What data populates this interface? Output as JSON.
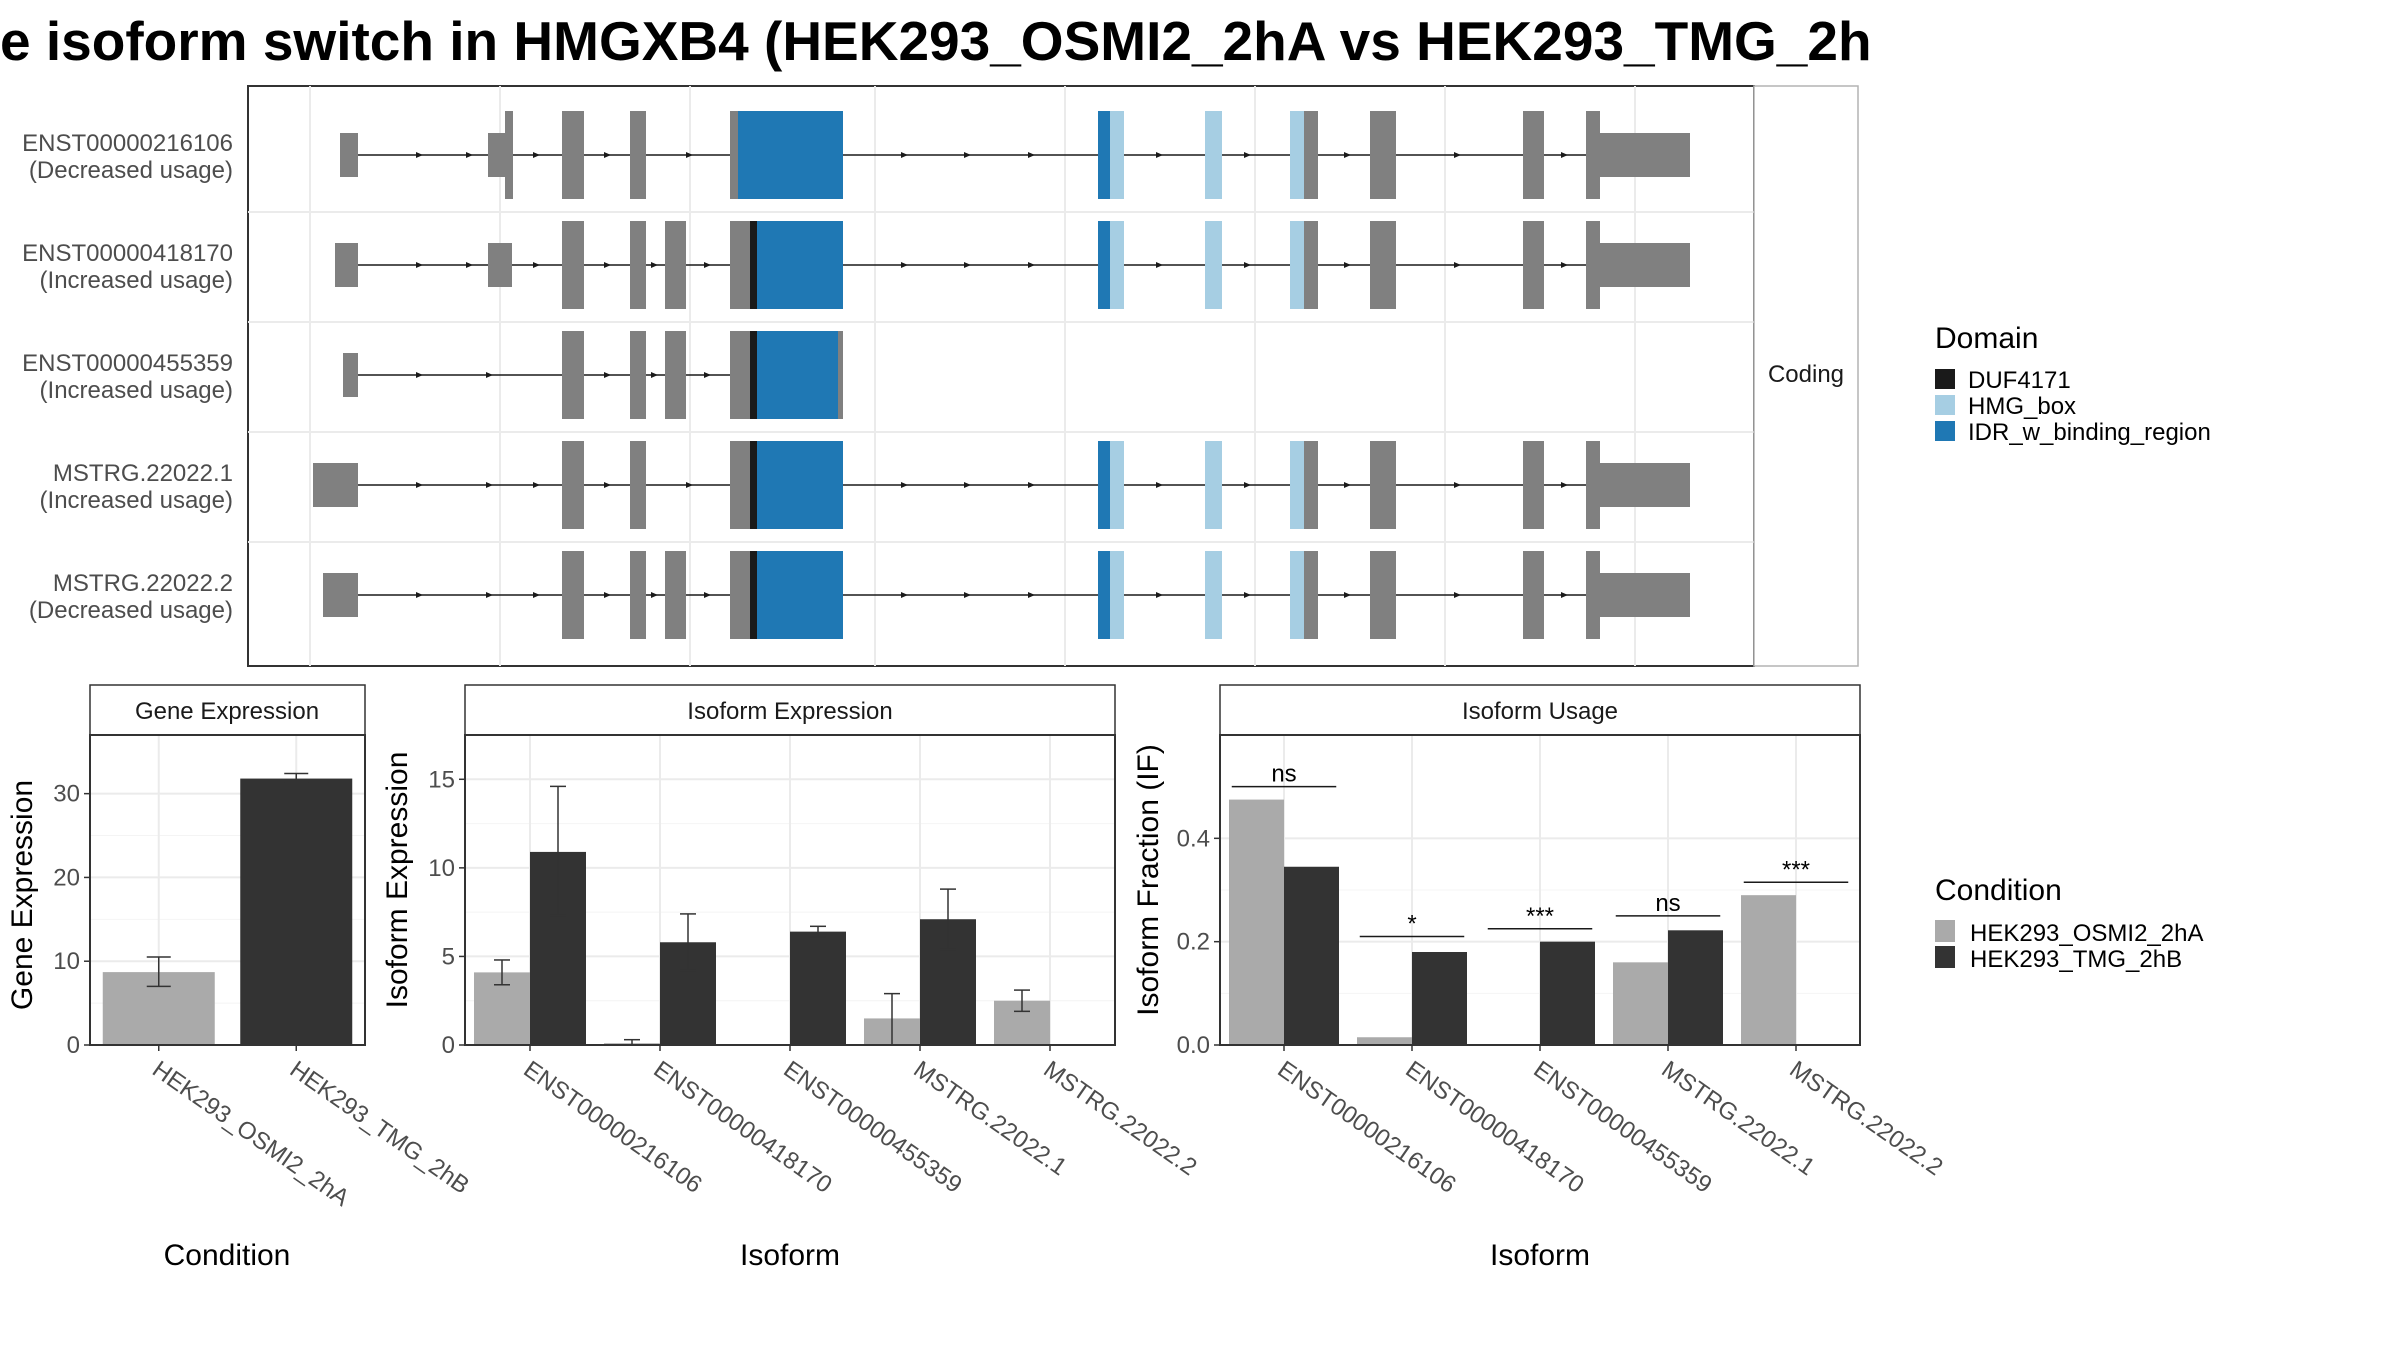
{
  "title": "e isoform switch in HMGXB4 (HEK293_OSMI2_2hA vs HEK293_TMG_2h",
  "colors": {
    "exon_noncoding": "#808080",
    "DUF4171": "#1a1a1a",
    "HMG_box": "#a6cee3",
    "IDR_w_binding_region": "#1f78b4",
    "condition_1": "#aaaaaa",
    "condition_2": "#333333"
  },
  "transcript_panel": {
    "strip_label": "Coding",
    "transcripts": [
      {
        "id": "ENST00000216106",
        "usage": "(Decreased usage)"
      },
      {
        "id": "ENST00000418170",
        "usage": "(Increased usage)"
      },
      {
        "id": "ENST00000455359",
        "usage": "(Increased usage)"
      },
      {
        "id": "MSTRG.22022.1",
        "usage": "(Increased usage)"
      },
      {
        "id": "MSTRG.22022.2",
        "usage": "(Decreased usage)"
      }
    ]
  },
  "domain_legend": {
    "title": "Domain",
    "items": [
      {
        "label": "DUF4171",
        "color": "#1a1a1a"
      },
      {
        "label": "HMG_box",
        "color": "#a6cee3"
      },
      {
        "label": "IDR_w_binding_region",
        "color": "#1f78b4"
      }
    ]
  },
  "condition_legend": {
    "title": "Condition",
    "items": [
      {
        "label": "HEK293_OSMI2_2hA",
        "color": "#aaaaaa"
      },
      {
        "label": "HEK293_TMG_2hB",
        "color": "#333333"
      }
    ]
  },
  "chart_data": [
    {
      "type": "bar",
      "title": "Gene Expression",
      "xlabel": "Condition",
      "ylabel": "Gene Expression",
      "ylim": [
        0,
        37
      ],
      "yticks": [
        0,
        10,
        20,
        30
      ],
      "categories": [
        "HEK293_OSMI2_2hA",
        "HEK293_TMG_2hB"
      ],
      "values": [
        8.7,
        31.8
      ],
      "error_low": [
        7.0,
        31.3
      ],
      "error_high": [
        10.5,
        32.4
      ]
    },
    {
      "type": "bar",
      "title": "Isoform Expression",
      "xlabel": "Isoform",
      "ylabel": "Isoform Expression",
      "ylim": [
        0,
        17.5
      ],
      "yticks": [
        0,
        5,
        10,
        15
      ],
      "categories": [
        "ENST00000216106",
        "ENST00000418170",
        "ENST00000455359",
        "MSTRG.22022.1",
        "MSTRG.22022.2"
      ],
      "series": [
        {
          "name": "HEK293_OSMI2_2hA",
          "values": [
            4.1,
            0.1,
            0.0,
            1.5,
            2.5
          ],
          "error_low": [
            3.4,
            0.0,
            0.0,
            0.0,
            1.9
          ],
          "error_high": [
            4.8,
            0.3,
            0.0,
            2.9,
            3.1
          ]
        },
        {
          "name": "HEK293_TMG_2hB",
          "values": [
            10.9,
            5.8,
            6.4,
            7.1,
            0.0
          ],
          "error_low": [
            7.3,
            4.2,
            6.1,
            5.4,
            0.0
          ],
          "error_high": [
            14.6,
            7.4,
            6.7,
            8.8,
            0.0
          ]
        }
      ]
    },
    {
      "type": "bar",
      "title": "Isoform Usage",
      "xlabel": "Isoform",
      "ylabel": "Isoform Fraction (IF)",
      "ylim": [
        0,
        0.6
      ],
      "yticks": [
        0.0,
        0.2,
        0.4
      ],
      "categories": [
        "ENST00000216106",
        "ENST00000418170",
        "ENST00000455359",
        "MSTRG.22022.1",
        "MSTRG.22022.2"
      ],
      "series": [
        {
          "name": "HEK293_OSMI2_2hA",
          "values": [
            0.475,
            0.015,
            0.0,
            0.16,
            0.29
          ]
        },
        {
          "name": "HEK293_TMG_2hB",
          "values": [
            0.345,
            0.18,
            0.2,
            0.222,
            0.0
          ]
        }
      ],
      "significance": [
        {
          "category": 0,
          "label": "ns",
          "y": 0.5
        },
        {
          "category": 1,
          "label": "*",
          "y": 0.21
        },
        {
          "category": 2,
          "label": "***",
          "y": 0.225
        },
        {
          "category": 3,
          "label": "ns",
          "y": 0.25
        },
        {
          "category": 4,
          "label": "***",
          "y": 0.315
        }
      ]
    }
  ]
}
